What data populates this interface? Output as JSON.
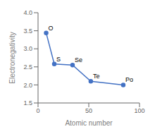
{
  "chart_data": {
    "type": "line",
    "xlabel": "Atomic number",
    "ylabel": "Electronegativity",
    "x": [
      8,
      16,
      34,
      52,
      84
    ],
    "values": [
      3.44,
      2.58,
      2.55,
      2.1,
      2.0
    ],
    "color": "#4472C4",
    "marker": "circle",
    "xlim": [
      0,
      100
    ],
    "xticks": [
      0,
      50,
      100
    ],
    "ylim": [
      1.5,
      4.0
    ],
    "yticks": [
      1.5,
      {
        "value": 2.0,
        "label": "2.0"
      },
      2.5,
      {
        "value": 3.0,
        "label": "3.0"
      },
      3.5,
      {
        "value": 4.0,
        "label": "4.0"
      }
    ],
    "annotations": [
      {
        "text": "O",
        "x": 8,
        "y": 3.44
      },
      {
        "text": "S",
        "x": 16,
        "y": 2.58
      },
      {
        "text": "Se",
        "x": 34,
        "y": 2.55
      },
      {
        "text": "Te",
        "x": 52,
        "y": 2.1
      },
      {
        "text": "Po",
        "x": 84,
        "y": 2.0
      }
    ]
  }
}
